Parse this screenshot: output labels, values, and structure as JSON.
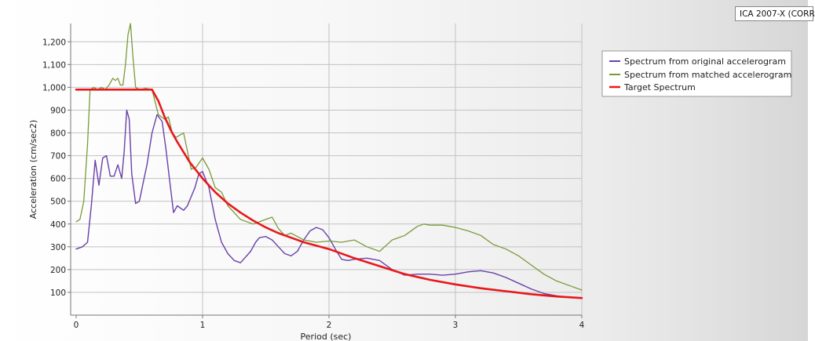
{
  "caption": "ICA 2007-X (CORR",
  "colors": {
    "original": "#6a40a8",
    "matched": "#7a9a3a",
    "target": "#e8181c",
    "grid": "#c2c2c2"
  },
  "chart_data": {
    "type": "line",
    "xlabel": "Period (sec)",
    "ylabel": "Acceleration (cm/sec2)",
    "xlim": [
      0,
      4
    ],
    "ylim": [
      0,
      1280
    ],
    "grid": true,
    "legend_placement": "top-right",
    "xticks": [
      "0",
      "1",
      "2",
      "3",
      "4"
    ],
    "yticks": [
      "100",
      "200",
      "300",
      "400",
      "500",
      "600",
      "700",
      "800",
      "900",
      "1,000",
      "1,100",
      "1,200"
    ],
    "series": [
      {
        "name": "Spectrum from original accelerogram",
        "color": "#6a40a8",
        "x": [
          0.0,
          0.05,
          0.09,
          0.12,
          0.15,
          0.18,
          0.21,
          0.24,
          0.27,
          0.3,
          0.33,
          0.36,
          0.38,
          0.4,
          0.42,
          0.44,
          0.47,
          0.5,
          0.53,
          0.56,
          0.6,
          0.64,
          0.68,
          0.71,
          0.74,
          0.77,
          0.8,
          0.85,
          0.88,
          0.91,
          0.94,
          0.97,
          1.0,
          1.05,
          1.1,
          1.15,
          1.2,
          1.25,
          1.3,
          1.38,
          1.42,
          1.45,
          1.5,
          1.55,
          1.6,
          1.65,
          1.7,
          1.75,
          1.8,
          1.85,
          1.9,
          1.95,
          2.0,
          2.05,
          2.1,
          2.15,
          2.2,
          2.3,
          2.4,
          2.5,
          2.6,
          2.7,
          2.8,
          2.9,
          3.0,
          3.1,
          3.2,
          3.3,
          3.4,
          3.5,
          3.6,
          3.7,
          3.8,
          3.9,
          4.0
        ],
        "values": [
          290,
          300,
          320,
          480,
          680,
          570,
          690,
          700,
          610,
          610,
          660,
          600,
          720,
          900,
          860,
          620,
          490,
          500,
          580,
          660,
          800,
          880,
          850,
          730,
          590,
          450,
          480,
          460,
          480,
          520,
          560,
          620,
          630,
          560,
          420,
          320,
          270,
          240,
          230,
          280,
          320,
          340,
          345,
          330,
          300,
          270,
          260,
          280,
          330,
          370,
          385,
          375,
          340,
          290,
          245,
          240,
          245,
          250,
          240,
          200,
          175,
          180,
          180,
          175,
          180,
          190,
          195,
          185,
          165,
          140,
          115,
          95,
          85,
          78,
          75
        ]
      },
      {
        "name": "Spectrum from matched accelerogram",
        "color": "#7a9a3a",
        "x": [
          0.0,
          0.03,
          0.06,
          0.09,
          0.11,
          0.14,
          0.17,
          0.2,
          0.23,
          0.26,
          0.29,
          0.31,
          0.33,
          0.35,
          0.37,
          0.39,
          0.41,
          0.43,
          0.45,
          0.47,
          0.5,
          0.55,
          0.6,
          0.65,
          0.7,
          0.73,
          0.76,
          0.79,
          0.82,
          0.85,
          0.88,
          0.91,
          0.95,
          1.0,
          1.05,
          1.1,
          1.15,
          1.2,
          1.3,
          1.4,
          1.5,
          1.55,
          1.6,
          1.65,
          1.7,
          1.8,
          1.9,
          2.0,
          2.1,
          2.2,
          2.3,
          2.4,
          2.5,
          2.6,
          2.7,
          2.75,
          2.8,
          2.9,
          3.0,
          3.1,
          3.2,
          3.3,
          3.4,
          3.5,
          3.6,
          3.7,
          3.8,
          3.9,
          4.0
        ],
        "values": [
          410,
          420,
          500,
          750,
          990,
          1000,
          990,
          1000,
          990,
          1010,
          1040,
          1030,
          1040,
          1010,
          1010,
          1100,
          1230,
          1280,
          1130,
          1000,
          990,
          995,
          990,
          880,
          860,
          870,
          800,
          780,
          790,
          800,
          720,
          640,
          650,
          690,
          640,
          560,
          540,
          480,
          420,
          400,
          420,
          430,
          380,
          350,
          360,
          330,
          320,
          325,
          320,
          330,
          300,
          280,
          330,
          350,
          390,
          400,
          395,
          395,
          385,
          370,
          350,
          310,
          290,
          260,
          220,
          180,
          150,
          130,
          110
        ]
      },
      {
        "name": "Target Spectrum",
        "color": "#e8181c",
        "x": [
          0.0,
          0.6,
          0.65,
          0.7,
          0.75,
          0.8,
          0.9,
          1.0,
          1.1,
          1.2,
          1.3,
          1.4,
          1.5,
          1.6,
          1.7,
          1.8,
          1.9,
          2.0,
          2.2,
          2.4,
          2.6,
          2.8,
          3.0,
          3.2,
          3.4,
          3.6,
          3.8,
          4.0
        ],
        "values": [
          990,
          990,
          940,
          870,
          810,
          760,
          670,
          600,
          540,
          490,
          450,
          415,
          385,
          360,
          340,
          320,
          305,
          290,
          250,
          215,
          180,
          155,
          135,
          118,
          105,
          92,
          82,
          75
        ]
      }
    ]
  }
}
